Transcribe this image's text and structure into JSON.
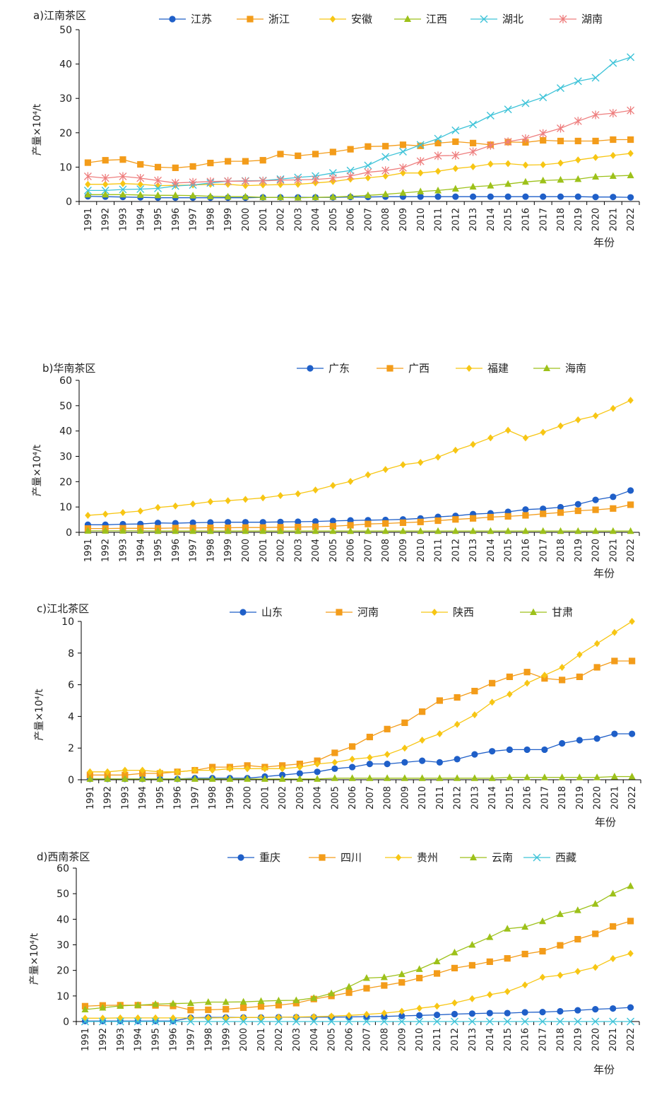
{
  "years": [
    "1991",
    "1992",
    "1993",
    "1994",
    "1995",
    "1996",
    "1997",
    "1998",
    "1999",
    "2000",
    "2001",
    "2002",
    "2003",
    "2004",
    "2005",
    "2006",
    "2007",
    "2008",
    "2009",
    "2010",
    "2011",
    "2012",
    "2013",
    "2014",
    "2015",
    "2016",
    "2017",
    "2018",
    "2019",
    "2020",
    "2021",
    "2022"
  ],
  "chart_data": [
    {
      "type": "line",
      "title": "a)江南茶区",
      "ylabel": "产量×10⁴/t",
      "xlabel": "年份",
      "ylim": [
        0,
        50
      ],
      "yticks": [
        0,
        10,
        20,
        30,
        40,
        50
      ],
      "legend_position": "top",
      "series": [
        {
          "name": "江苏",
          "color": "#1f5fc8",
          "marker": "circle",
          "values": [
            1.5,
            1.4,
            1.3,
            1.2,
            1.1,
            1.1,
            1.1,
            1.1,
            1.1,
            1.1,
            1.2,
            1.2,
            1.2,
            1.2,
            1.2,
            1.3,
            1.3,
            1.4,
            1.4,
            1.4,
            1.4,
            1.4,
            1.4,
            1.4,
            1.4,
            1.4,
            1.4,
            1.4,
            1.4,
            1.3,
            1.3,
            1.2
          ]
        },
        {
          "name": "浙江",
          "color": "#f39c1a",
          "marker": "square",
          "values": [
            11.3,
            12.0,
            12.2,
            10.8,
            10.0,
            9.8,
            10.2,
            11.2,
            11.7,
            11.7,
            12.0,
            13.8,
            13.3,
            13.8,
            14.4,
            15.2,
            16.0,
            16.1,
            16.5,
            16.2,
            17.0,
            17.4,
            17.0,
            16.5,
            17.3,
            17.2,
            17.8,
            17.6,
            17.6,
            17.6,
            18.0,
            18.0
          ]
        },
        {
          "name": "安徽",
          "color": "#f7c614",
          "marker": "diamond",
          "values": [
            5.0,
            5.0,
            5.2,
            5.0,
            4.6,
            4.7,
            4.8,
            5.0,
            5.0,
            4.6,
            4.8,
            4.9,
            5.0,
            5.4,
            5.8,
            6.5,
            6.9,
            7.4,
            8.3,
            8.3,
            8.8,
            9.6,
            10.1,
            10.9,
            11.0,
            10.6,
            10.7,
            11.2,
            12.1,
            12.8,
            13.4,
            14.0
          ]
        },
        {
          "name": "江西",
          "color": "#9dc11a",
          "marker": "triangle",
          "values": [
            2.0,
            2.0,
            2.0,
            1.9,
            1.8,
            1.8,
            1.7,
            1.5,
            1.4,
            1.4,
            1.2,
            1.2,
            1.1,
            1.2,
            1.3,
            1.5,
            1.8,
            2.1,
            2.5,
            2.9,
            3.2,
            3.7,
            4.3,
            4.6,
            5.1,
            5.7,
            6.1,
            6.3,
            6.5,
            7.2,
            7.4,
            7.6
          ]
        },
        {
          "name": "湖北",
          "color": "#3ec3d8",
          "marker": "x",
          "values": [
            3.2,
            3.2,
            3.5,
            3.6,
            3.8,
            4.5,
            4.8,
            5.4,
            5.9,
            6.0,
            6.1,
            6.5,
            7.0,
            7.4,
            8.3,
            9.0,
            10.5,
            13.0,
            14.5,
            16.5,
            18.3,
            20.7,
            22.4,
            25.0,
            26.8,
            28.6,
            30.3,
            33.0,
            35.0,
            36.0,
            40.3,
            42.0
          ]
        },
        {
          "name": "湖南",
          "color": "#ee7e7e",
          "marker": "star",
          "values": [
            7.3,
            6.8,
            7.3,
            6.8,
            6.1,
            5.4,
            5.6,
            5.8,
            5.9,
            5.9,
            6.0,
            6.2,
            6.3,
            6.4,
            6.8,
            7.4,
            8.5,
            9.0,
            9.8,
            11.7,
            13.3,
            13.4,
            14.5,
            16.3,
            17.4,
            18.3,
            19.8,
            21.3,
            23.4,
            25.2,
            25.7,
            26.5
          ]
        }
      ]
    },
    {
      "type": "line",
      "title": "b)华南茶区",
      "ylabel": "产量×10⁴/t",
      "xlabel": "年份",
      "ylim": [
        0,
        60
      ],
      "yticks": [
        0,
        10,
        20,
        30,
        40,
        50,
        60
      ],
      "legend_position": "top",
      "series": [
        {
          "name": "广东",
          "color": "#1f5fc8",
          "marker": "circle",
          "values": [
            3.0,
            3.0,
            3.2,
            3.3,
            3.7,
            3.6,
            3.8,
            3.9,
            4.0,
            4.0,
            4.0,
            4.1,
            4.2,
            4.3,
            4.5,
            4.7,
            4.8,
            4.9,
            5.1,
            5.5,
            6.1,
            6.5,
            7.2,
            7.5,
            8.1,
            9.0,
            9.3,
            9.9,
            11.1,
            12.8,
            14.0,
            16.5
          ]
        },
        {
          "name": "广西",
          "color": "#f39c1a",
          "marker": "square",
          "values": [
            1.5,
            1.5,
            1.6,
            1.6,
            1.6,
            1.7,
            1.7,
            1.8,
            1.8,
            1.9,
            1.9,
            2.0,
            2.1,
            2.2,
            2.4,
            2.8,
            3.3,
            3.5,
            3.8,
            4.1,
            4.6,
            5.1,
            5.5,
            6.0,
            6.3,
            6.7,
            7.3,
            7.8,
            8.5,
            8.9,
            9.4,
            10.9
          ]
        },
        {
          "name": "福建",
          "color": "#f7c614",
          "marker": "diamond",
          "values": [
            6.7,
            7.2,
            7.8,
            8.4,
            9.8,
            10.4,
            11.2,
            12.1,
            12.5,
            13.0,
            13.6,
            14.5,
            15.2,
            16.7,
            18.5,
            20.1,
            22.7,
            24.8,
            26.7,
            27.6,
            29.7,
            32.4,
            34.7,
            37.3,
            40.3,
            37.3,
            39.5,
            42.0,
            44.4,
            46.0,
            48.9,
            52.1
          ]
        },
        {
          "name": "海南",
          "color": "#9dc11a",
          "marker": "triangle",
          "values": [
            0.6,
            0.6,
            0.6,
            0.6,
            0.5,
            0.5,
            0.5,
            0.5,
            0.5,
            0.5,
            0.5,
            0.5,
            0.5,
            0.5,
            0.5,
            0.5,
            0.5,
            0.5,
            0.5,
            0.5,
            0.5,
            0.5,
            0.5,
            0.5,
            0.5,
            0.5,
            0.5,
            0.5,
            0.5,
            0.5,
            0.5,
            0.5
          ]
        }
      ]
    },
    {
      "type": "line",
      "title": "c)江北茶区",
      "ylabel": "产量×10⁴/t",
      "xlabel": "年份",
      "ylim": [
        0,
        10
      ],
      "yticks": [
        0,
        2,
        4,
        6,
        8,
        10
      ],
      "legend_position": "top",
      "series": [
        {
          "name": "山东",
          "color": "#1f5fc8",
          "marker": "circle",
          "values": [
            0.05,
            0.05,
            0.05,
            0.05,
            0.05,
            0.05,
            0.1,
            0.1,
            0.1,
            0.1,
            0.2,
            0.3,
            0.4,
            0.5,
            0.7,
            0.8,
            1.0,
            1.0,
            1.1,
            1.2,
            1.1,
            1.3,
            1.6,
            1.8,
            1.9,
            1.9,
            1.9,
            2.3,
            2.5,
            2.6,
            2.9,
            2.9
          ]
        },
        {
          "name": "河南",
          "color": "#f39c1a",
          "marker": "square",
          "values": [
            0.3,
            0.3,
            0.3,
            0.4,
            0.4,
            0.5,
            0.6,
            0.8,
            0.8,
            0.9,
            0.8,
            0.9,
            1.0,
            1.2,
            1.7,
            2.1,
            2.7,
            3.2,
            3.6,
            4.3,
            5.0,
            5.2,
            5.6,
            6.1,
            6.5,
            6.8,
            6.4,
            6.3,
            6.5,
            7.1,
            7.5,
            7.5
          ]
        },
        {
          "name": "陕西",
          "color": "#f7c614",
          "marker": "diamond",
          "values": [
            0.5,
            0.5,
            0.6,
            0.6,
            0.5,
            0.5,
            0.6,
            0.6,
            0.7,
            0.7,
            0.7,
            0.7,
            0.8,
            1.0,
            1.1,
            1.3,
            1.4,
            1.6,
            2.0,
            2.5,
            2.9,
            3.5,
            4.1,
            4.9,
            5.4,
            6.1,
            6.6,
            7.1,
            7.9,
            8.6,
            9.3,
            10.0
          ]
        },
        {
          "name": "甘肃",
          "color": "#9dc11a",
          "marker": "triangle",
          "values": [
            0.05,
            0.05,
            0.05,
            0.05,
            0.05,
            0.05,
            0.05,
            0.05,
            0.05,
            0.05,
            0.05,
            0.05,
            0.05,
            0.05,
            0.1,
            0.1,
            0.1,
            0.1,
            0.1,
            0.1,
            0.1,
            0.1,
            0.1,
            0.1,
            0.15,
            0.15,
            0.15,
            0.15,
            0.15,
            0.15,
            0.2,
            0.2
          ]
        }
      ]
    },
    {
      "type": "line",
      "title": "d)西南茶区",
      "ylabel": "产量×10⁴/t",
      "xlabel": "年份",
      "ylim": [
        0,
        60
      ],
      "yticks": [
        0,
        10,
        20,
        30,
        40,
        50,
        60
      ],
      "legend_position": "top",
      "series": [
        {
          "name": "重庆",
          "color": "#1f5fc8",
          "marker": "circle",
          "values": [
            0.2,
            0.2,
            0.2,
            0.2,
            0.2,
            0.2,
            1.5,
            1.6,
            1.6,
            1.6,
            1.6,
            1.7,
            1.7,
            1.7,
            1.7,
            1.8,
            1.9,
            2.0,
            2.2,
            2.4,
            2.6,
            2.9,
            3.1,
            3.3,
            3.3,
            3.6,
            3.7,
            4.0,
            4.4,
            4.8,
            5.1,
            5.5
          ]
        },
        {
          "name": "四川",
          "color": "#f39c1a",
          "marker": "square",
          "values": [
            6.0,
            6.3,
            6.4,
            6.4,
            6.3,
            6.1,
            4.5,
            4.6,
            4.8,
            5.4,
            5.9,
            6.4,
            7.2,
            8.8,
            10.0,
            11.3,
            13.0,
            14.1,
            15.3,
            17.0,
            18.8,
            20.9,
            22.0,
            23.4,
            24.7,
            26.4,
            27.5,
            29.8,
            32.2,
            34.3,
            37.2,
            39.3
          ]
        },
        {
          "name": "贵州",
          "color": "#f7c614",
          "marker": "diamond",
          "values": [
            1.3,
            1.3,
            1.4,
            1.4,
            1.4,
            1.4,
            1.4,
            1.4,
            1.5,
            1.6,
            1.6,
            1.7,
            1.8,
            1.9,
            2.1,
            2.4,
            2.8,
            3.3,
            4.0,
            5.2,
            6.0,
            7.3,
            8.9,
            10.5,
            11.7,
            14.3,
            17.3,
            18.1,
            19.6,
            21.2,
            24.6,
            26.6
          ]
        },
        {
          "name": "云南",
          "color": "#9dc11a",
          "marker": "triangle",
          "values": [
            4.7,
            5.4,
            6.1,
            6.4,
            6.8,
            7.0,
            7.2,
            7.6,
            7.6,
            7.7,
            8.0,
            8.2,
            8.3,
            9.2,
            11.0,
            13.6,
            17.0,
            17.3,
            18.5,
            20.5,
            23.5,
            27.0,
            30.0,
            33.0,
            36.3,
            37.0,
            39.2,
            42.0,
            43.5,
            46.0,
            50.0,
            53.0
          ]
        },
        {
          "name": "西藏",
          "color": "#3ec3d8",
          "marker": "x",
          "values": [
            0,
            0,
            0,
            0,
            0,
            0,
            0,
            0,
            0,
            0,
            0,
            0,
            0,
            0,
            0,
            0,
            0,
            0,
            0,
            0,
            0,
            0,
            0,
            0,
            0,
            0,
            0,
            0,
            0,
            0,
            0,
            0
          ]
        }
      ]
    }
  ]
}
